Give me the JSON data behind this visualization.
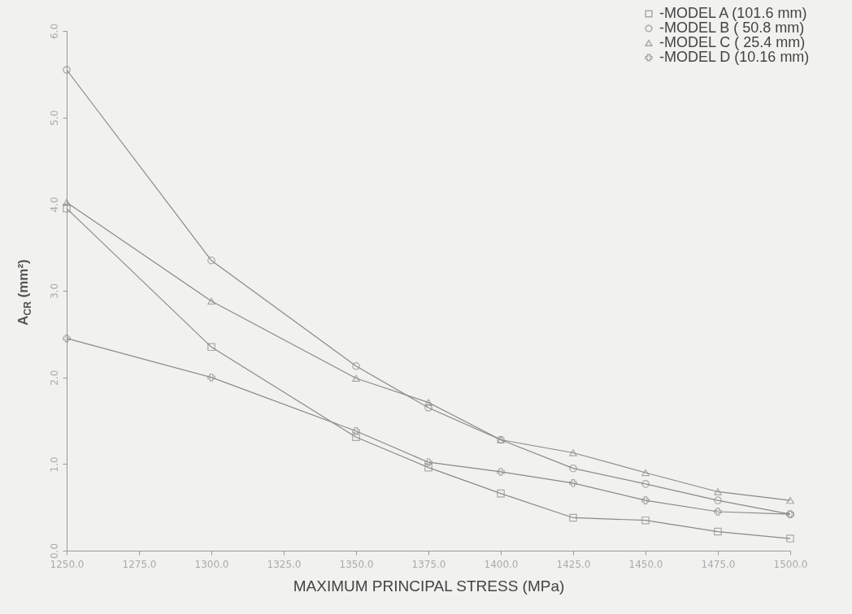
{
  "chart_data": {
    "type": "line",
    "xlabel": "MAXIMUM PRINCIPAL STRESS  (MPa)",
    "ylabel": "A$_{CR}$  (mm²)",
    "x": [
      1250,
      1300,
      1350,
      1375,
      1400,
      1425,
      1450,
      1475,
      1500
    ],
    "series": [
      {
        "name": "-MODEL A  (101.6 mm)",
        "color": "#8a8a8a",
        "marker": "square",
        "values": [
          3.95,
          2.35,
          1.31,
          0.96,
          0.66,
          0.38,
          0.35,
          0.22,
          0.14
        ]
      },
      {
        "name": "-MODEL B  ( 50.8 mm)",
        "color": "#8a8a8a",
        "marker": "circle",
        "values": [
          5.55,
          3.35,
          2.13,
          1.65,
          1.28,
          0.95,
          0.77,
          0.58,
          0.42
        ]
      },
      {
        "name": "-MODEL C  ( 25.4 mm)",
        "color": "#8a8a8a",
        "marker": "triangle",
        "values": [
          4.02,
          2.88,
          1.99,
          1.71,
          1.28,
          1.13,
          0.9,
          0.68,
          0.58
        ]
      },
      {
        "name": "-MODEL D  (10.16 mm)",
        "color": "#8a8a8a",
        "marker": "cross",
        "values": [
          2.45,
          2.0,
          1.38,
          1.02,
          0.91,
          0.78,
          0.58,
          0.45,
          0.42
        ]
      }
    ],
    "xlim": [
      1250,
      1500
    ],
    "ylim": [
      0,
      6
    ],
    "xticks": [
      {
        "value": 1250,
        "label": "1250.0"
      },
      {
        "value": 1275,
        "label": "1275.0"
      },
      {
        "value": 1300,
        "label": "1300.0"
      },
      {
        "value": 1325,
        "label": "1325.0"
      },
      {
        "value": 1350,
        "label": "1350.0"
      },
      {
        "value": 1375,
        "label": "1375.0"
      },
      {
        "value": 1400,
        "label": "1400.0"
      },
      {
        "value": 1425,
        "label": "1425.0"
      },
      {
        "value": 1450,
        "label": "1450.0"
      },
      {
        "value": 1475,
        "label": "1475.0"
      },
      {
        "value": 1500,
        "label": "1500.0"
      }
    ],
    "yticks": [
      {
        "value": 0,
        "label": "0.0"
      },
      {
        "value": 1,
        "label": "1.0"
      },
      {
        "value": 2,
        "label": "2.0"
      },
      {
        "value": 3,
        "label": "3.0"
      },
      {
        "value": 4,
        "label": "4.0"
      },
      {
        "value": 5,
        "label": "5.0"
      },
      {
        "value": 6,
        "label": "6.0"
      }
    ],
    "grid": false,
    "legend": "top right",
    "line_style": "solid"
  }
}
